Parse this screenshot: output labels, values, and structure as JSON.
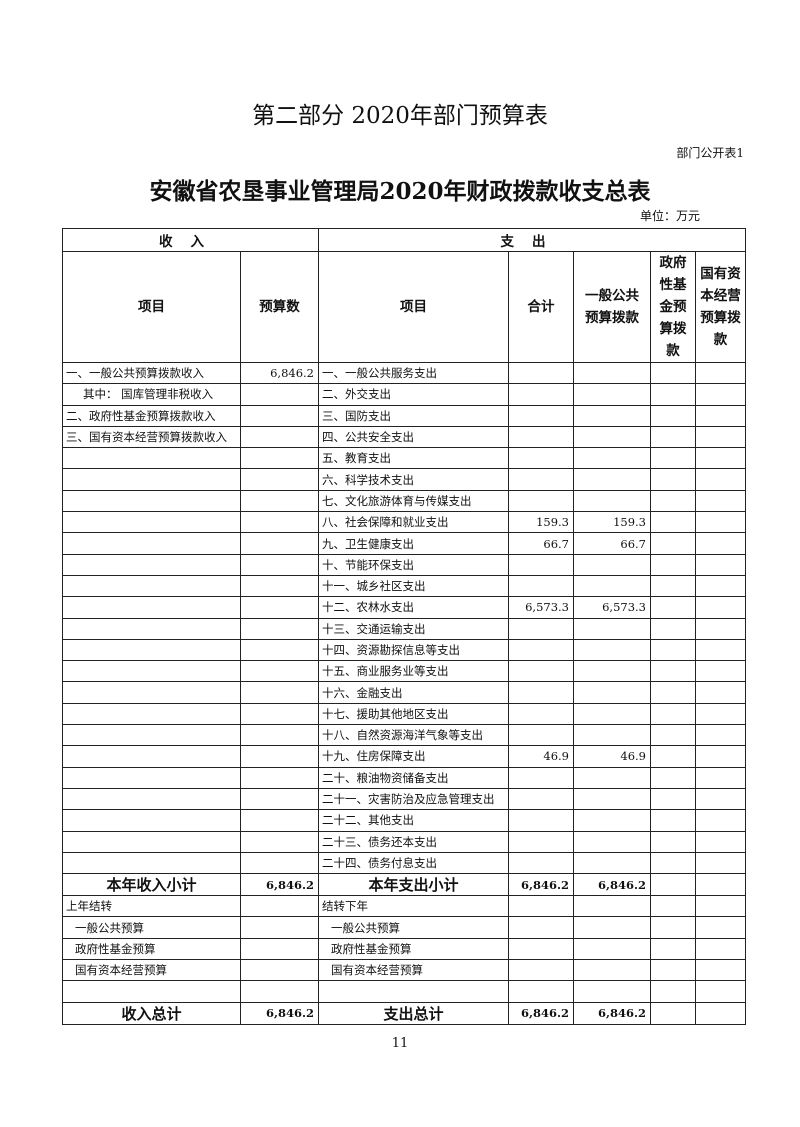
{
  "part_title": "第二部分 2020年部门预算表",
  "table_no": "部门公开表1",
  "main_title": "安徽省农垦事业管理局2020年财政拨款收支总表",
  "unit": "单位：万元",
  "header": {
    "income": "收入",
    "expense": "支出",
    "income_item": "项目",
    "income_budget": "预算数",
    "expense_item": "项目",
    "total": "合计",
    "general": "一般公共预算拨款",
    "gov_fund": "政府性基金预算拨款",
    "state_capital": "国有资本经营预算拨款"
  },
  "rows": [
    {
      "in_item": "一、一般公共预算拨款收入",
      "in_amt": "6,846.2",
      "ex_item": "一、一般公共服务支出",
      "total": "",
      "general": ""
    },
    {
      "in_item": "其中：  国库管理非税收入",
      "in_amt": "",
      "ex_item": "二、外交支出",
      "total": "",
      "general": "",
      "indent": true
    },
    {
      "in_item": "二、政府性基金预算拨款收入",
      "in_amt": "",
      "ex_item": "三、国防支出",
      "total": "",
      "general": ""
    },
    {
      "in_item": "三、国有资本经营预算拨款收入",
      "in_amt": "",
      "ex_item": "四、公共安全支出",
      "total": "",
      "general": ""
    },
    {
      "in_item": "",
      "in_amt": "",
      "ex_item": "五、教育支出",
      "total": "",
      "general": ""
    },
    {
      "in_item": "",
      "in_amt": "",
      "ex_item": "六、科学技术支出",
      "total": "",
      "general": ""
    },
    {
      "in_item": "",
      "in_amt": "",
      "ex_item": "七、文化旅游体育与传媒支出",
      "total": "",
      "general": ""
    },
    {
      "in_item": "",
      "in_amt": "",
      "ex_item": "八、社会保障和就业支出",
      "total": "159.3",
      "general": "159.3"
    },
    {
      "in_item": "",
      "in_amt": "",
      "ex_item": "九、卫生健康支出",
      "total": "66.7",
      "general": "66.7"
    },
    {
      "in_item": "",
      "in_amt": "",
      "ex_item": "十、节能环保支出",
      "total": "",
      "general": ""
    },
    {
      "in_item": "",
      "in_amt": "",
      "ex_item": "十一、城乡社区支出",
      "total": "",
      "general": ""
    },
    {
      "in_item": "",
      "in_amt": "",
      "ex_item": "十二、农林水支出",
      "total": "6,573.3",
      "general": "6,573.3"
    },
    {
      "in_item": "",
      "in_amt": "",
      "ex_item": "十三、交通运输支出",
      "total": "",
      "general": ""
    },
    {
      "in_item": "",
      "in_amt": "",
      "ex_item": "十四、资源勘探信息等支出",
      "total": "",
      "general": ""
    },
    {
      "in_item": "",
      "in_amt": "",
      "ex_item": "十五、商业服务业等支出",
      "total": "",
      "general": ""
    },
    {
      "in_item": "",
      "in_amt": "",
      "ex_item": "十六、金融支出",
      "total": "",
      "general": ""
    },
    {
      "in_item": "",
      "in_amt": "",
      "ex_item": "十七、援助其他地区支出",
      "total": "",
      "general": ""
    },
    {
      "in_item": "",
      "in_amt": "",
      "ex_item": "十八、自然资源海洋气象等支出",
      "total": "",
      "general": ""
    },
    {
      "in_item": "",
      "in_amt": "",
      "ex_item": "十九、住房保障支出",
      "total": "46.9",
      "general": "46.9"
    },
    {
      "in_item": "",
      "in_amt": "",
      "ex_item": "二十、粮油物资储备支出",
      "total": "",
      "general": ""
    },
    {
      "in_item": "",
      "in_amt": "",
      "ex_item": "二十一、灾害防治及应急管理支出",
      "total": "",
      "general": ""
    },
    {
      "in_item": "",
      "in_amt": "",
      "ex_item": "二十二、其他支出",
      "total": "",
      "general": ""
    },
    {
      "in_item": "",
      "in_amt": "",
      "ex_item": "二十三、债务还本支出",
      "total": "",
      "general": ""
    },
    {
      "in_item": "",
      "in_amt": "",
      "ex_item": "二十四、债务付息支出",
      "total": "",
      "general": ""
    }
  ],
  "subtotal": {
    "in_label": "本年收入小计",
    "in_amt": "6,846.2",
    "ex_label": "本年支出小计",
    "total": "6,846.2",
    "general": "6,846.2"
  },
  "carry_rows": [
    {
      "in_item": "上年结转",
      "ex_item": "结转下年",
      "sub": false
    },
    {
      "in_item": "一般公共预算",
      "ex_item": "一般公共预算",
      "sub": true
    },
    {
      "in_item": "政府性基金预算",
      "ex_item": "政府性基金预算",
      "sub": true
    },
    {
      "in_item": "国有资本经营预算",
      "ex_item": "国有资本经营预算",
      "sub": true
    },
    {
      "in_item": "",
      "ex_item": "",
      "sub": false
    }
  ],
  "grand_total": {
    "in_label": "收入总计",
    "in_amt": "6,846.2",
    "ex_label": "支出总计",
    "total": "6,846.2",
    "general": "6,846.2"
  },
  "page_number": "11"
}
